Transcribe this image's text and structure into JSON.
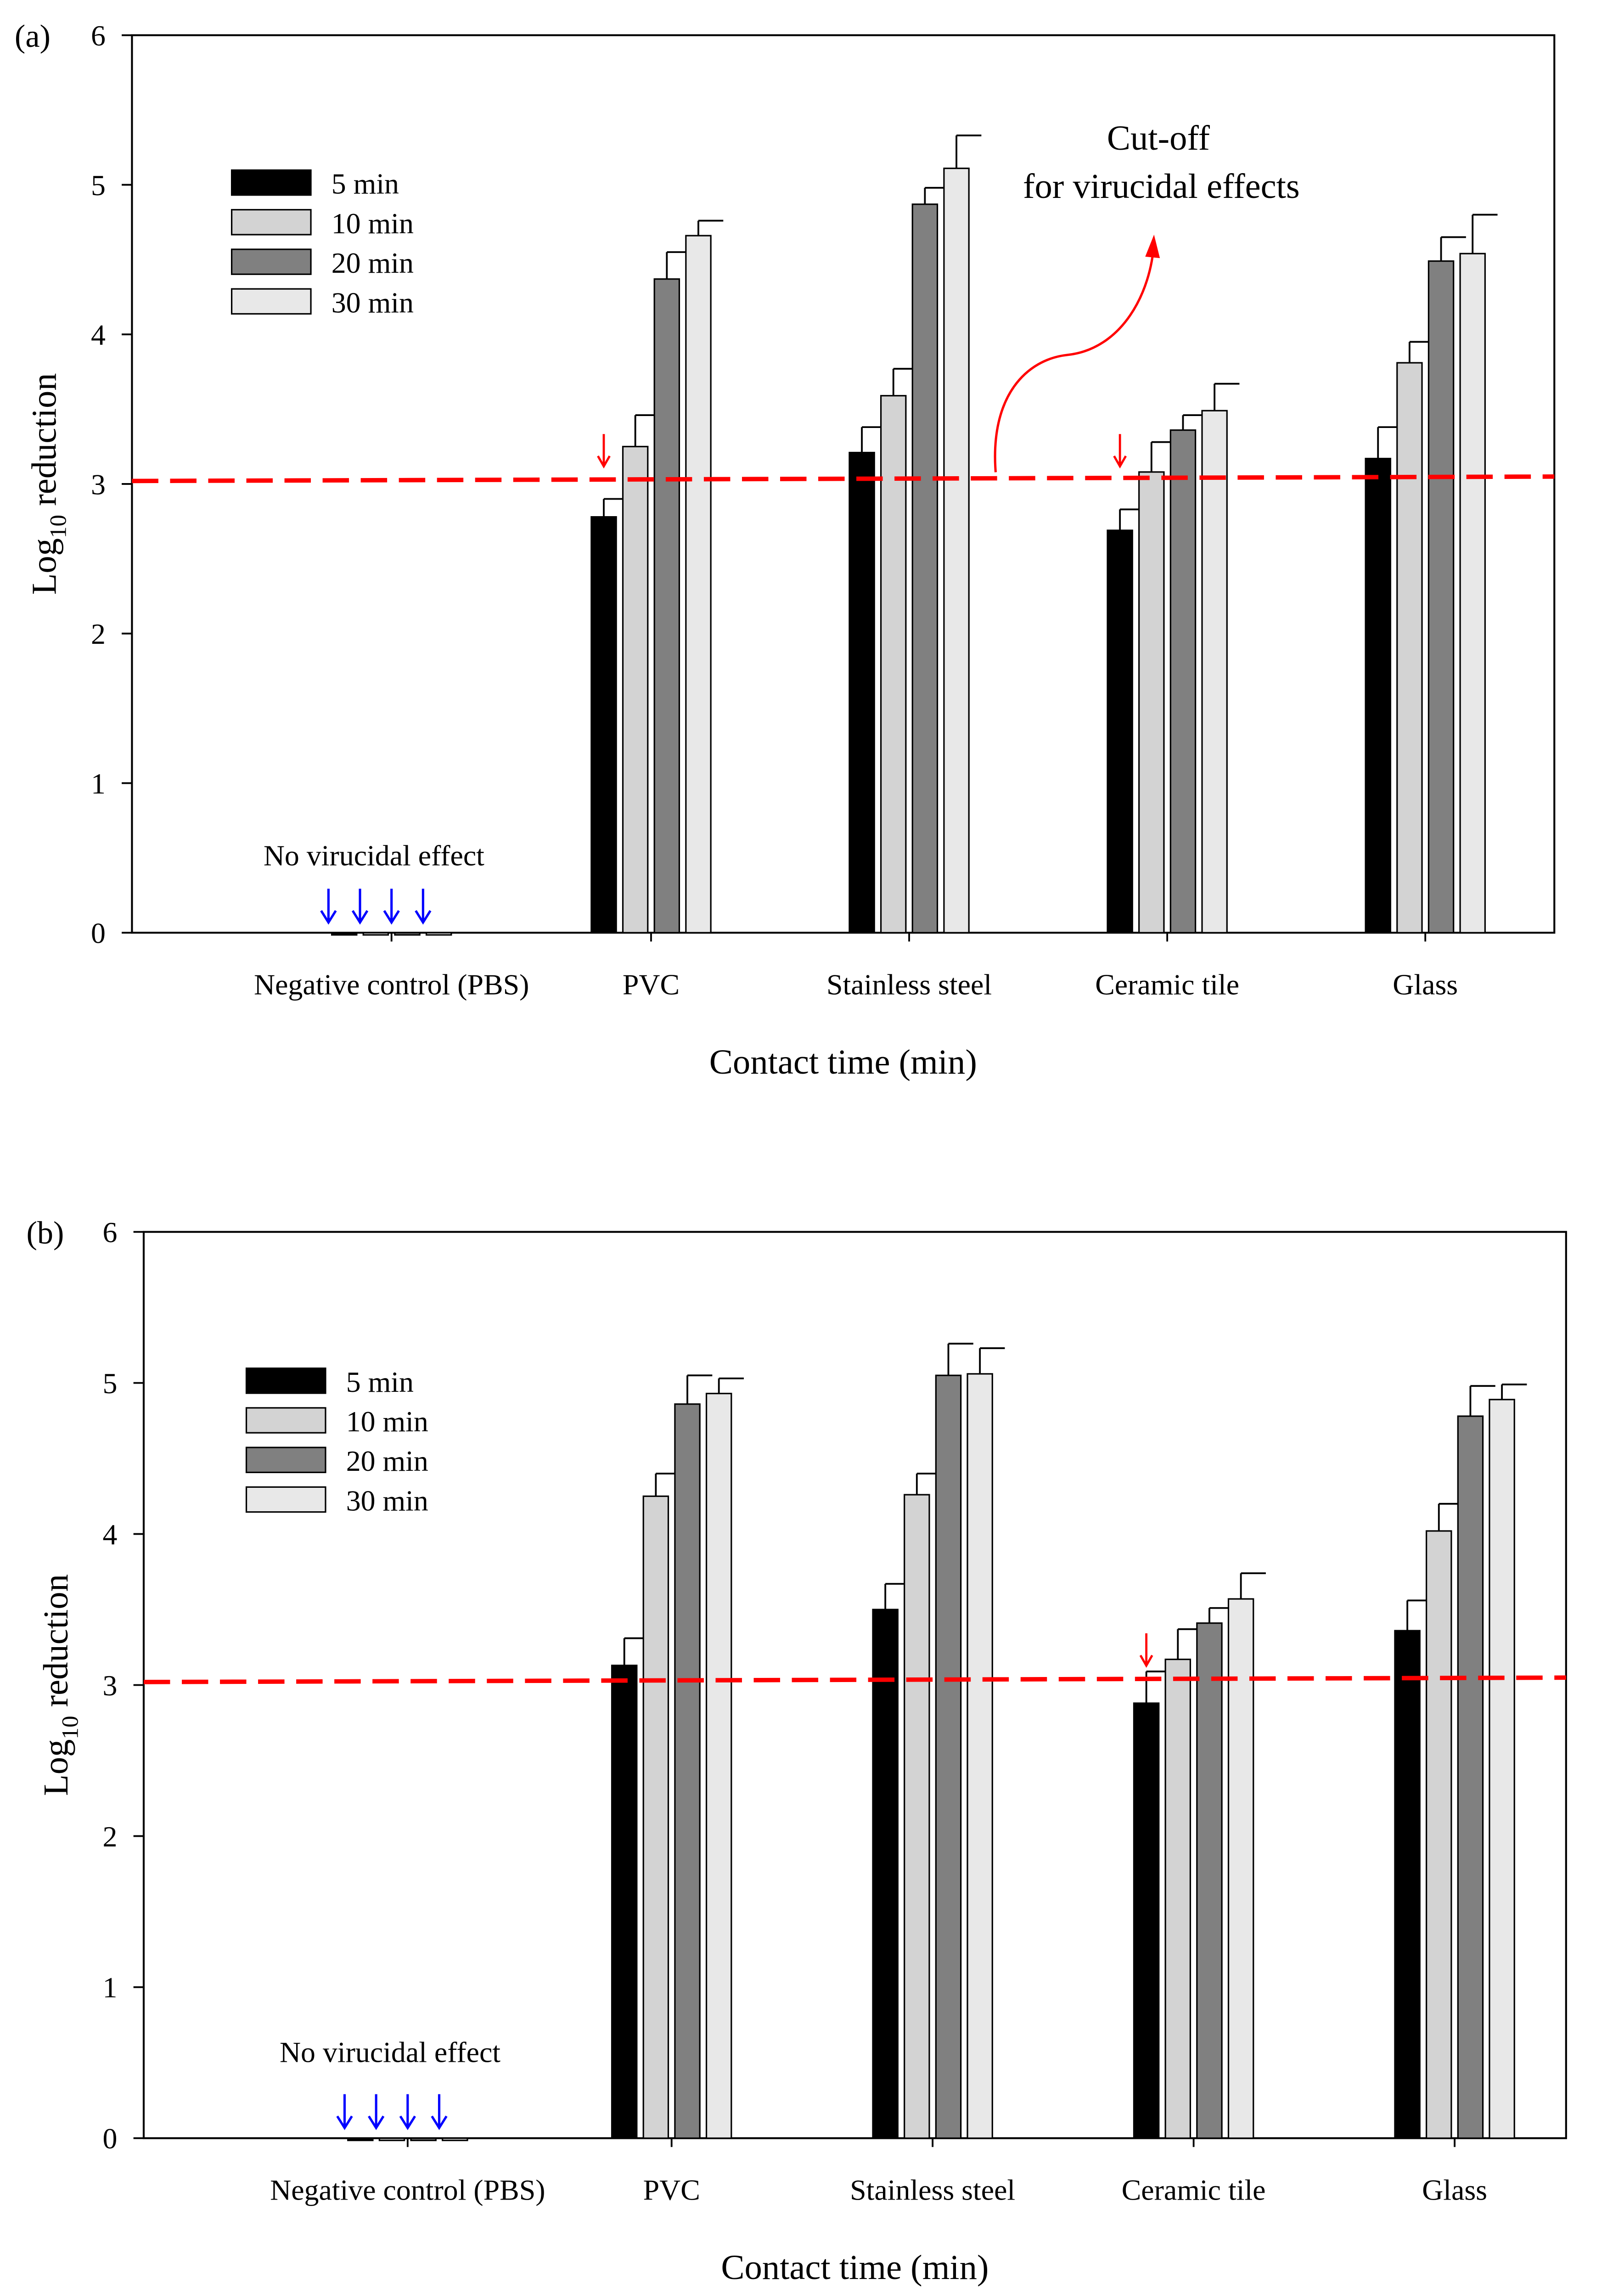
{
  "chart_data": [
    {
      "type": "bar",
      "panel_label": "(a)",
      "ylabel_main": "Log",
      "ylabel_sub": "10",
      "ylabel_rest": " reduction",
      "xlabel": "Contact time (min)",
      "ylim": [
        0,
        6
      ],
      "yticks": [
        "0",
        "1",
        "2",
        "3",
        "4",
        "5",
        "6"
      ],
      "categories": [
        "Negative control (PBS)",
        "PVC",
        "Stainless steel",
        "Ceramic tile",
        "Glass"
      ],
      "series": [
        {
          "name": "5 min",
          "color": "#000000",
          "values": [
            0,
            2.78,
            3.21,
            2.69,
            3.17
          ],
          "err": [
            0,
            0.12,
            0.17,
            0.14,
            0.21
          ]
        },
        {
          "name": "10 min",
          "color": "#d3d3d3",
          "values": [
            0,
            3.25,
            3.59,
            3.08,
            3.81
          ],
          "err": [
            0,
            0.21,
            0.18,
            0.2,
            0.14
          ]
        },
        {
          "name": "20 min",
          "color": "#808080",
          "values": [
            0,
            4.37,
            4.87,
            3.36,
            4.49
          ],
          "err": [
            0,
            0.18,
            0.11,
            0.1,
            0.16
          ]
        },
        {
          "name": "30 min",
          "color": "#e8e8e8",
          "values": [
            0,
            4.66,
            5.11,
            3.49,
            4.54
          ],
          "err": [
            0,
            0.1,
            0.22,
            0.18,
            0.26
          ]
        }
      ],
      "cutoff": 3.02,
      "cutoff_color": "#ff0000",
      "annotation_cutoff": [
        "Cut-off",
        "for virucidal effects"
      ],
      "annotation_no_effect": "No virucidal effect",
      "red_arrow_categories": [
        "PVC",
        "Ceramic tile"
      ]
    },
    {
      "type": "bar",
      "panel_label": "(b)",
      "ylabel_main": "Log",
      "ylabel_sub": "10",
      "ylabel_rest": " reduction",
      "xlabel": "Contact time (min)",
      "ylim": [
        0,
        6
      ],
      "yticks": [
        "0",
        "1",
        "2",
        "3",
        "4",
        "5",
        "6"
      ],
      "categories": [
        "Negative control (PBS)",
        "PVC",
        "Stainless steel",
        "Ceramic tile",
        "Glass"
      ],
      "series": [
        {
          "name": "5 min",
          "color": "#000000",
          "values": [
            0,
            3.13,
            3.5,
            2.88,
            3.36
          ],
          "err": [
            0,
            0.18,
            0.17,
            0.21,
            0.2
          ]
        },
        {
          "name": "10 min",
          "color": "#d3d3d3",
          "values": [
            0,
            4.25,
            4.26,
            3.17,
            4.02
          ],
          "err": [
            0,
            0.15,
            0.14,
            0.2,
            0.18
          ]
        },
        {
          "name": "20 min",
          "color": "#808080",
          "values": [
            0,
            4.86,
            5.05,
            3.41,
            4.78
          ],
          "err": [
            0,
            0.19,
            0.21,
            0.1,
            0.2
          ]
        },
        {
          "name": "30 min",
          "color": "#e8e8e8",
          "values": [
            0,
            4.93,
            5.06,
            3.57,
            4.89
          ],
          "err": [
            0,
            0.1,
            0.17,
            0.17,
            0.1
          ]
        }
      ],
      "cutoff": 3.02,
      "cutoff_color": "#ff0000",
      "annotation_no_effect": "No virucidal effect",
      "red_arrow_categories": [
        "Ceramic tile"
      ]
    }
  ]
}
